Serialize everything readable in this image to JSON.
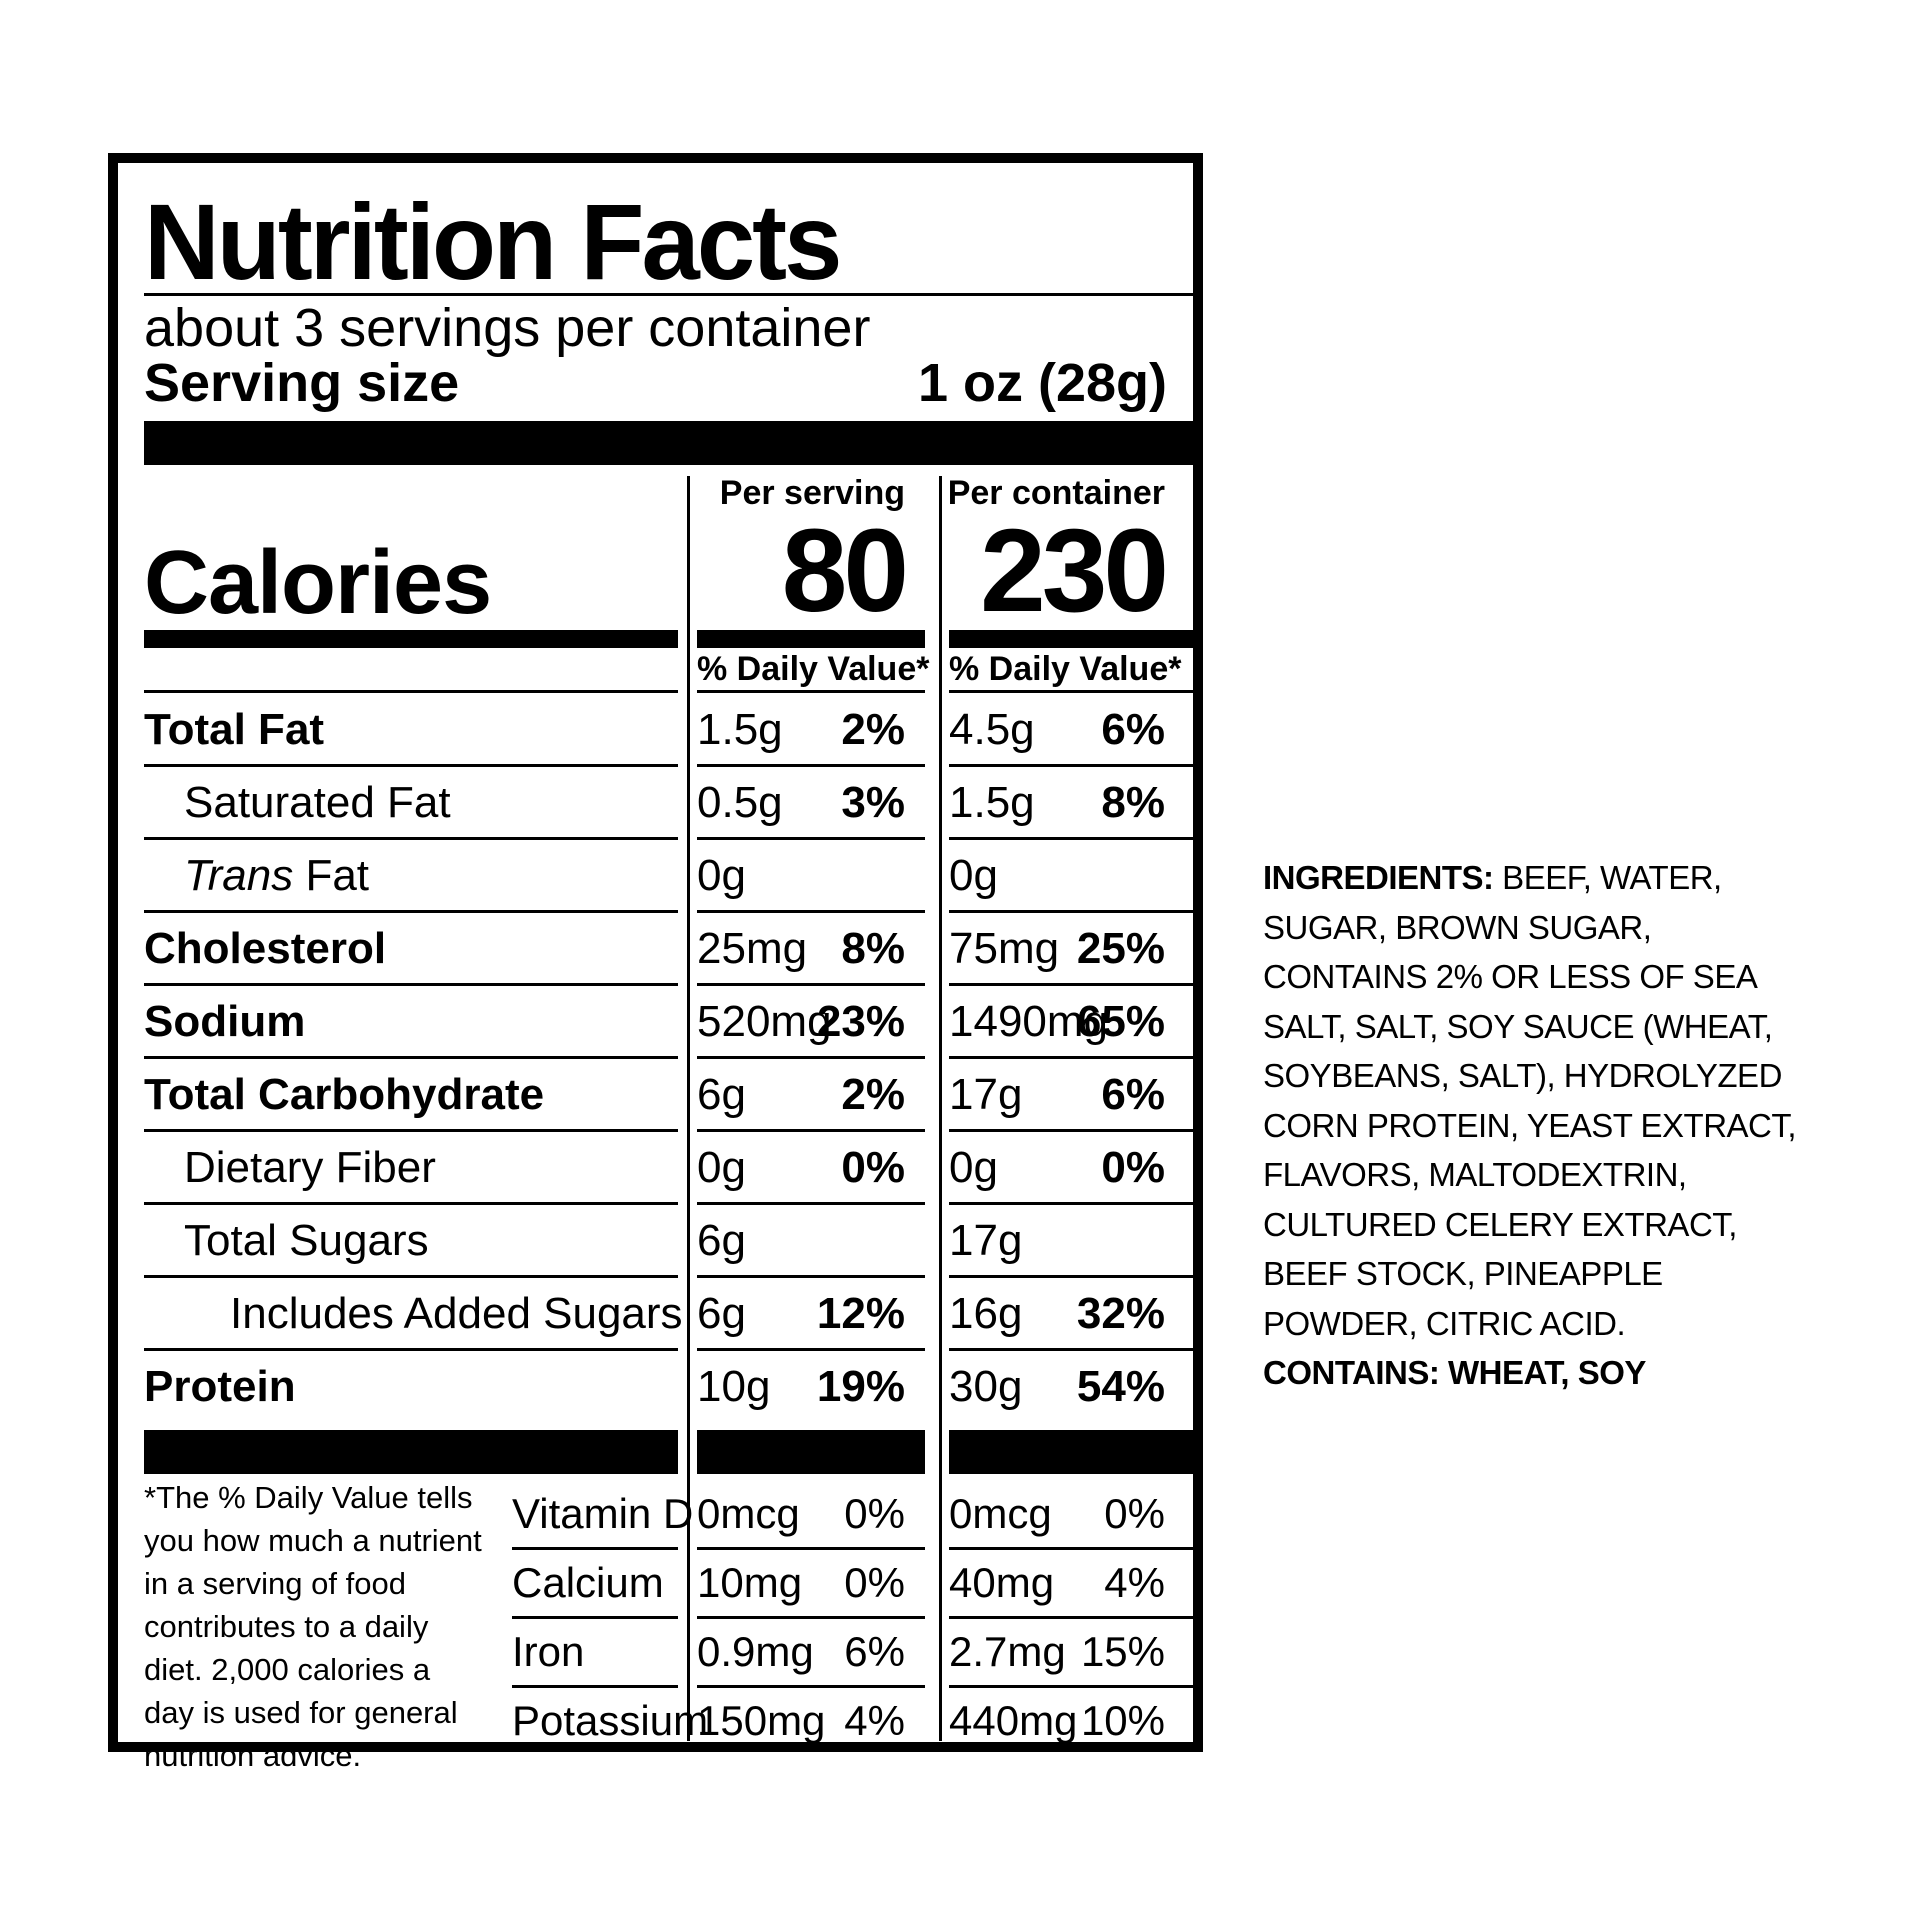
{
  "label": {
    "title": "Nutrition Facts",
    "servings_per_container": "about 3 servings per container",
    "serving_size_label": "Serving size",
    "serving_size_value": "1 oz (28g)",
    "calories_label": "Calories",
    "per_serving_header": "Per serving",
    "per_container_header": "Per container",
    "calories_per_serving": "80",
    "calories_per_container": "230",
    "dv_header": "% Daily Value*",
    "nutrients": [
      {
        "name": "Total Fat",
        "serving_amount": "1.5g",
        "serving_dv": "2%",
        "container_amount": "4.5g",
        "container_dv": "6%"
      },
      {
        "name": "Saturated Fat",
        "serving_amount": "0.5g",
        "serving_dv": "3%",
        "container_amount": "1.5g",
        "container_dv": "8%"
      },
      {
        "name_italic": "Trans",
        "name_rest": " Fat",
        "serving_amount": "0g",
        "serving_dv": "",
        "container_amount": "0g",
        "container_dv": ""
      },
      {
        "name": "Cholesterol",
        "serving_amount": "25mg",
        "serving_dv": "8%",
        "container_amount": "75mg",
        "container_dv": "25%"
      },
      {
        "name": "Sodium",
        "serving_amount": "520mg",
        "serving_dv": "23%",
        "container_amount": "1490mg",
        "container_dv": "65%"
      },
      {
        "name": "Total Carbohydrate",
        "serving_amount": "6g",
        "serving_dv": "2%",
        "container_amount": "17g",
        "container_dv": "6%"
      },
      {
        "name": "Dietary Fiber",
        "serving_amount": "0g",
        "serving_dv": "0%",
        "container_amount": "0g",
        "container_dv": "0%"
      },
      {
        "name": "Total Sugars",
        "serving_amount": "6g",
        "serving_dv": "",
        "container_amount": "17g",
        "container_dv": ""
      },
      {
        "name": "Includes Added Sugars",
        "serving_amount": "6g",
        "serving_dv": "12%",
        "container_amount": "16g",
        "container_dv": "32%"
      },
      {
        "name": "Protein",
        "serving_amount": "10g",
        "serving_dv": "19%",
        "container_amount": "30g",
        "container_dv": "54%"
      }
    ],
    "footnote_star": "*",
    "footnote": "The % Daily Value tells you how much a nutrient in a serving of food contributes to a daily diet. 2,000 calories a day is used for general nutrition advice.",
    "vitamins": [
      {
        "name": "Vitamin D",
        "serving_amount": "0mcg",
        "serving_dv": "0%",
        "container_amount": "0mcg",
        "container_dv": "0%"
      },
      {
        "name": "Calcium",
        "serving_amount": "10mg",
        "serving_dv": "0%",
        "container_amount": "40mg",
        "container_dv": "4%"
      },
      {
        "name": "Iron",
        "serving_amount": "0.9mg",
        "serving_dv": "6%",
        "container_amount": "2.7mg",
        "container_dv": "15%"
      },
      {
        "name": "Potassium",
        "serving_amount": "150mg",
        "serving_dv": "4%",
        "container_amount": "440mg",
        "container_dv": "10%"
      }
    ]
  },
  "ingredients": {
    "label": "INGREDIENTS:",
    "text": " BEEF, WATER, SUGAR, BROWN SUGAR, CONTAINS 2% OR LESS OF SEA SALT, SALT, SOY SAUCE (WHEAT, SOYBEANS, SALT), HYDROLYZED CORN PROTEIN, YEAST EXTRACT, FLAVORS, MALTODEXTRIN, CULTURED CELERY EXTRACT, BEEF STOCK, PINEAPPLE POWDER, CITRIC ACID.",
    "contains_label": "CONTAINS: WHEAT, SOY"
  }
}
